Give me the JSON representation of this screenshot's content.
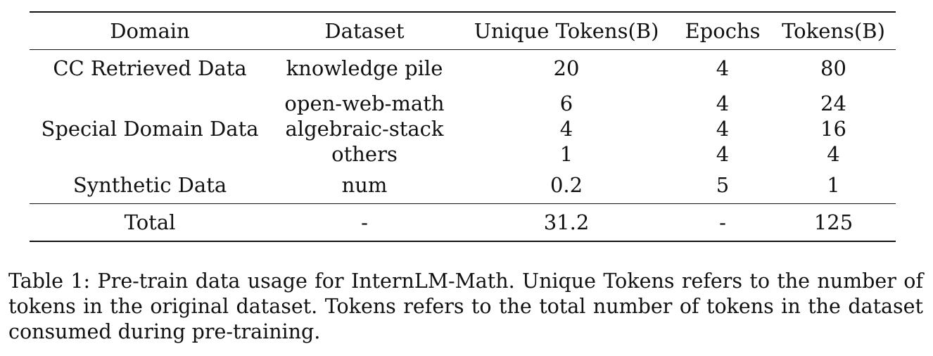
{
  "table": {
    "headers": [
      "Domain",
      "Dataset",
      "Unique Tokens(B)",
      "Epochs",
      "Tokens(B)"
    ],
    "groups": [
      {
        "domain": "CC Retrieved Data",
        "rows": [
          {
            "dataset": "knowledge pile",
            "unique_tokens": "20",
            "epochs": "4",
            "tokens": "80"
          }
        ]
      },
      {
        "domain": "Special Domain Data",
        "rows": [
          {
            "dataset": "open-web-math",
            "unique_tokens": "6",
            "epochs": "4",
            "tokens": "24"
          },
          {
            "dataset": "algebraic-stack",
            "unique_tokens": "4",
            "epochs": "4",
            "tokens": "16"
          },
          {
            "dataset": "others",
            "unique_tokens": "1",
            "epochs": "4",
            "tokens": "4"
          }
        ]
      },
      {
        "domain": "Synthetic Data",
        "rows": [
          {
            "dataset": "num",
            "unique_tokens": "0.2",
            "epochs": "5",
            "tokens": "1"
          }
        ]
      }
    ],
    "total": {
      "label": "Total",
      "dataset": "-",
      "unique_tokens": "31.2",
      "epochs": "-",
      "tokens": "125"
    }
  },
  "caption": "Table 1: Pre-train data usage for InternLM-Math. Unique Tokens refers to the number of tokens in the original dataset. Tokens refers to the total number of tokens in the dataset consumed during pre-training."
}
